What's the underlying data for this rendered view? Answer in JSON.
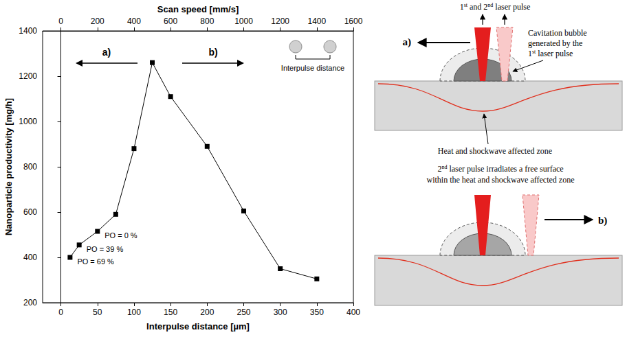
{
  "chart_data": {
    "type": "line",
    "x_label": "Interpulse distance [µm]",
    "x2_label": "Scan speed [mm/s]",
    "y_label": "Nanoparticle productivity [mg/h]",
    "x": [
      12.5,
      25,
      50,
      75,
      100,
      125,
      150,
      200,
      250,
      300,
      350
    ],
    "values": [
      400,
      455,
      515,
      590,
      880,
      1260,
      1110,
      890,
      605,
      350,
      305
    ],
    "color": "#000000",
    "marker": "square",
    "line_style": "solid",
    "xlim": [
      -25,
      400
    ],
    "xticks": [
      0,
      50,
      100,
      150,
      200,
      250,
      300,
      350,
      400
    ],
    "x2lim": [
      -100,
      1600
    ],
    "x2ticks": [
      0,
      200,
      400,
      600,
      800,
      1000,
      1200,
      1400,
      1600
    ],
    "ylim": [
      200,
      1400
    ],
    "yticks": [
      200,
      400,
      600,
      800,
      1000,
      1200,
      1400
    ],
    "grid": false,
    "annotations": [
      {
        "x": 50,
        "text": "PO = 0 %"
      },
      {
        "x": 25,
        "text": "PO = 39 %"
      },
      {
        "x": 12.5,
        "text": "PO = 69 %"
      }
    ],
    "arrows": [
      {
        "text": "a)",
        "direction": "left"
      },
      {
        "text": "b)",
        "direction": "right"
      }
    ],
    "inset_label": "Interpulse distance"
  },
  "diagram": {
    "top_label": "1st and 2nd laser pulse",
    "arrow_a": "a)",
    "bubble_label": [
      "Cavitation bubble",
      "generated by the",
      "1st laser pulse"
    ],
    "zone_label": "Heat and shockwave affected zone",
    "bottom_label": [
      "2nd laser pulse irradiates a free surface",
      "within the heat and shockwave affected zone"
    ],
    "arrow_b": "b)"
  }
}
